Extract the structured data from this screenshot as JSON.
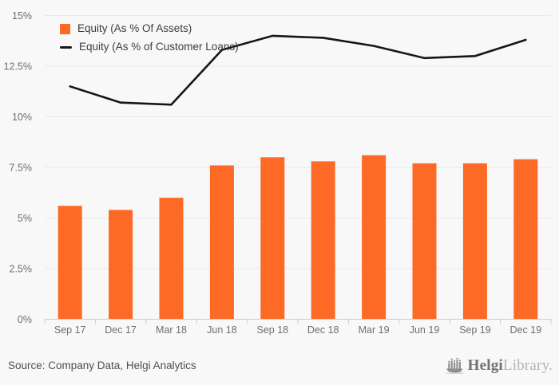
{
  "chart_data": {
    "type": "bar",
    "categories": [
      "Sep 17",
      "Dec 17",
      "Mar 18",
      "Jun 18",
      "Sep 18",
      "Dec 18",
      "Mar 19",
      "Jun 19",
      "Sep 19",
      "Dec 19"
    ],
    "series": [
      {
        "name": "Equity (As % Of Assets)",
        "type": "bar",
        "color": "#fc6a26",
        "values": [
          5.6,
          5.4,
          6.0,
          7.6,
          8.0,
          7.8,
          8.1,
          7.7,
          7.7,
          7.9
        ]
      },
      {
        "name": "Equity (As % of Customer Loans)",
        "type": "line",
        "color": "#161616",
        "values": [
          11.5,
          10.7,
          10.6,
          13.3,
          14.0,
          13.9,
          13.5,
          12.9,
          13.0,
          13.8
        ]
      }
    ],
    "title": "",
    "xlabel": "",
    "ylabel": "",
    "ylim": [
      0,
      15
    ],
    "ytick_values": [
      0,
      2.5,
      5,
      7.5,
      10,
      12.5,
      15
    ],
    "ytick_labels": [
      "0%",
      "2.5%",
      "5%",
      "7.5%",
      "10%",
      "12.5%",
      "15%"
    ],
    "grid": true,
    "legend_position": "top-left"
  },
  "colors": {
    "background": "#f8f8f8",
    "gridline": "#e9e9e9",
    "axis_line": "#c6cce2",
    "tick_label": "#6e6e6e",
    "legend_text": "#3c3c3c"
  },
  "footer": {
    "source": "Source: Company Data, Helgi Analytics",
    "brand_primary": "Helgi",
    "brand_secondary": "Library."
  }
}
